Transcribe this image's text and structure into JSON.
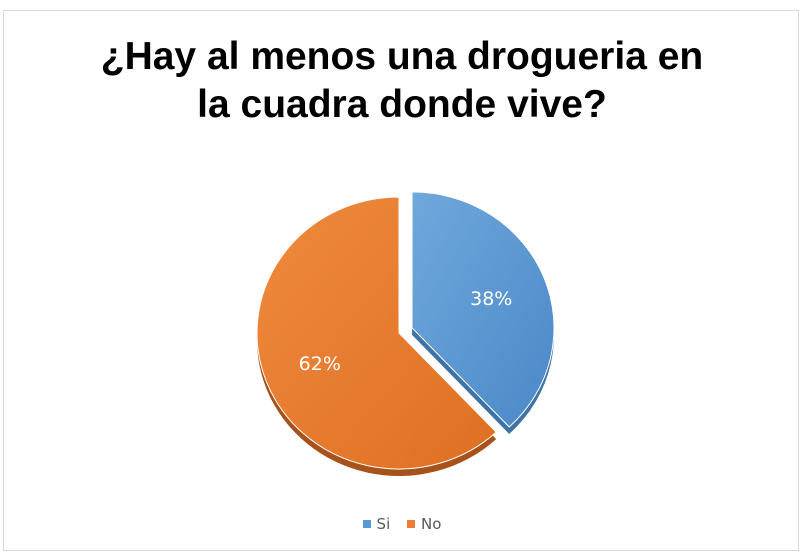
{
  "chart_data": {
    "type": "pie",
    "title_lines": [
      "¿Hay al menos una drogueria en",
      "la cuadra donde vive?"
    ],
    "categories": [
      "Si",
      "No"
    ],
    "values": [
      38,
      62
    ],
    "value_labels": [
      "38%",
      "62%"
    ],
    "colors": [
      "#5b9bd5",
      "#ed7d31"
    ],
    "exploded": [
      "Si"
    ],
    "legend_position": "bottom"
  }
}
